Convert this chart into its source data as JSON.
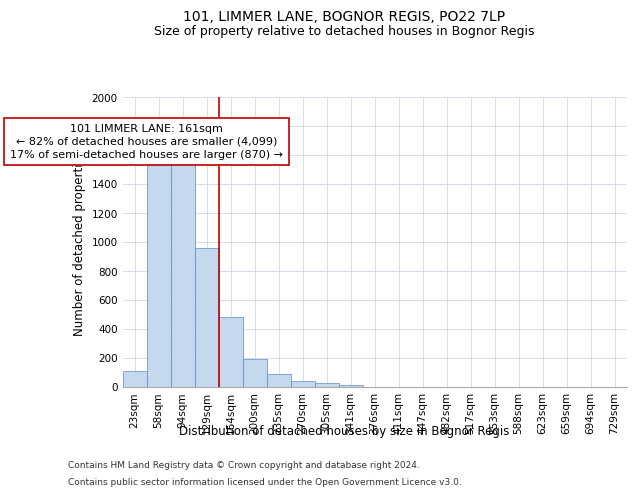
{
  "title": "101, LIMMER LANE, BOGNOR REGIS, PO22 7LP",
  "subtitle": "Size of property relative to detached houses in Bognor Regis",
  "xlabel": "Distribution of detached houses by size in Bognor Regis",
  "ylabel": "Number of detached properties",
  "categories": [
    "23sqm",
    "58sqm",
    "94sqm",
    "129sqm",
    "164sqm",
    "200sqm",
    "235sqm",
    "270sqm",
    "305sqm",
    "341sqm",
    "376sqm",
    "411sqm",
    "447sqm",
    "482sqm",
    "517sqm",
    "553sqm",
    "588sqm",
    "623sqm",
    "659sqm",
    "694sqm",
    "729sqm"
  ],
  "values": [
    107,
    1530,
    1560,
    960,
    480,
    190,
    90,
    40,
    25,
    15,
    0,
    0,
    0,
    0,
    0,
    0,
    0,
    0,
    0,
    0,
    0
  ],
  "bar_color": "#c5d8ed",
  "bar_edge_color": "#5b8cc8",
  "vline_x_index": 4,
  "vline_color": "#c00000",
  "annotation_text": "101 LIMMER LANE: 161sqm\n← 82% of detached houses are smaller (4,099)\n17% of semi-detached houses are larger (870) →",
  "annotation_box_color": "#ffffff",
  "annotation_box_edge_color": "#c00000",
  "ylim": [
    0,
    2000
  ],
  "yticks": [
    0,
    200,
    400,
    600,
    800,
    1000,
    1200,
    1400,
    1600,
    1800,
    2000
  ],
  "footnote1": "Contains HM Land Registry data © Crown copyright and database right 2024.",
  "footnote2": "Contains public sector information licensed under the Open Government Licence v3.0.",
  "background_color": "#ffffff",
  "grid_color": "#d0d8e8",
  "title_fontsize": 10,
  "subtitle_fontsize": 9,
  "axis_label_fontsize": 8.5,
  "tick_fontsize": 7.5,
  "annotation_fontsize": 8,
  "footnote_fontsize": 6.5
}
